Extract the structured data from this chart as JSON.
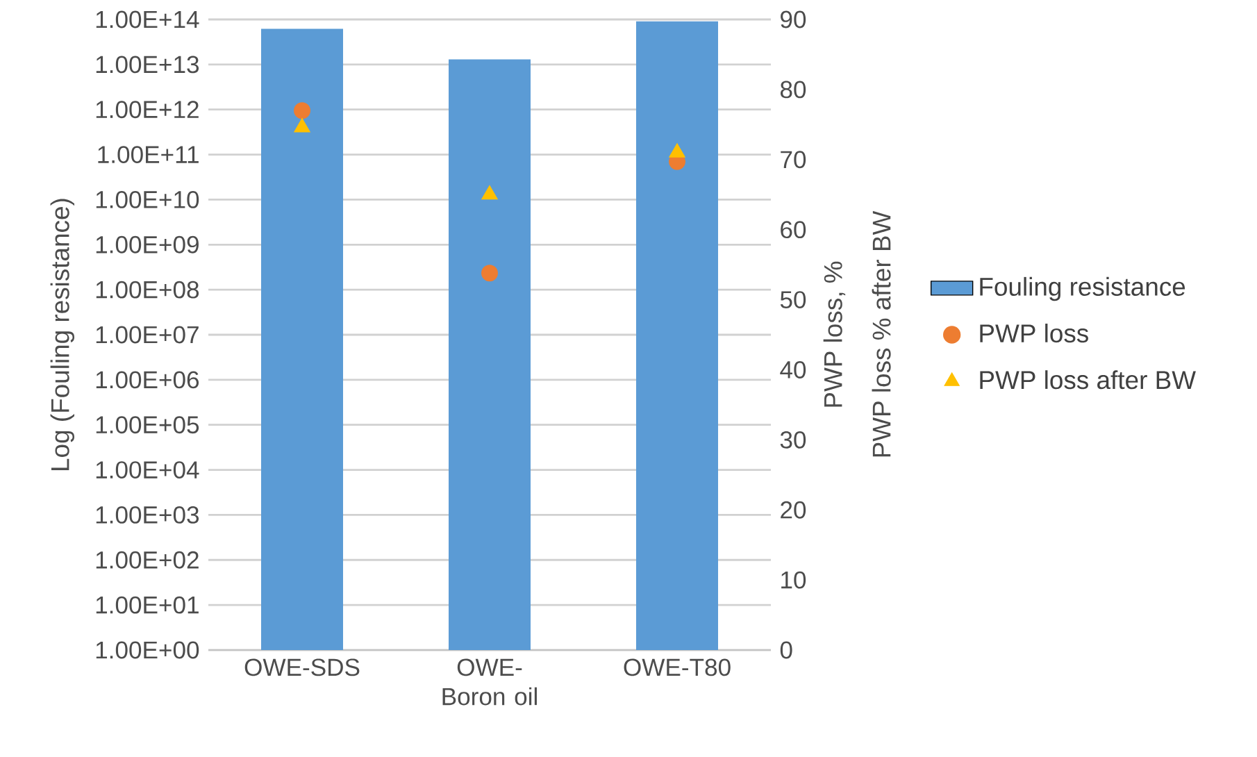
{
  "chart_data": {
    "type": "bar",
    "categories": [
      "OWE-SDS",
      "OWE-Boron oil",
      "OWE-T80"
    ],
    "ylabel": "Log (Fouling resistance)",
    "y2label": "PWP loss, %",
    "annotations": [
      "PWP loss % after BW"
    ],
    "log": "y",
    "ylim": [
      1,
      100000000000000
    ],
    "yticks": [
      {
        "value": 1,
        "label": "1.00E+00"
      },
      {
        "value": 10,
        "label": "1.00E+01"
      },
      {
        "value": 100,
        "label": "1.00E+02"
      },
      {
        "value": 1000,
        "label": "1.00E+03"
      },
      {
        "value": 10000,
        "label": "1.00E+04"
      },
      {
        "value": 100000,
        "label": "1.00E+05"
      },
      {
        "value": 1000000,
        "label": "1.00E+06"
      },
      {
        "value": 10000000,
        "label": "1.00E+07"
      },
      {
        "value": 100000000,
        "label": "1.00E+08"
      },
      {
        "value": 1000000000,
        "label": "1.00E+09"
      },
      {
        "value": 10000000000,
        "label": "1.00E+10"
      },
      {
        "value": 100000000000,
        "label": "1.00E+11"
      },
      {
        "value": 1000000000000,
        "label": "1.00E+12"
      },
      {
        "value": 10000000000000,
        "label": "1.00E+13"
      },
      {
        "value": 100000000000000,
        "label": "1.00E+14"
      }
    ],
    "y2lim": [
      0,
      90
    ],
    "y2ticks": [
      0,
      10,
      20,
      30,
      40,
      50,
      60,
      70,
      80,
      90
    ],
    "grid": "y",
    "legend": "right",
    "series": [
      {
        "name": "Fouling resistance",
        "color": "#5b9bd5",
        "values": [
          62000000000000,
          13000000000000,
          91000000000000
        ]
      },
      {
        "name": "PWP loss",
        "type": "scatter",
        "axis": "y2",
        "marker": "circle",
        "color": "#ed7d31",
        "values": [
          77,
          53.8,
          69.7
        ]
      },
      {
        "name": "PWP loss after BW",
        "type": "scatter",
        "axis": "y2",
        "marker": "triangle",
        "color": "#ffc000",
        "values": [
          74.6,
          65,
          71
        ]
      }
    ]
  }
}
